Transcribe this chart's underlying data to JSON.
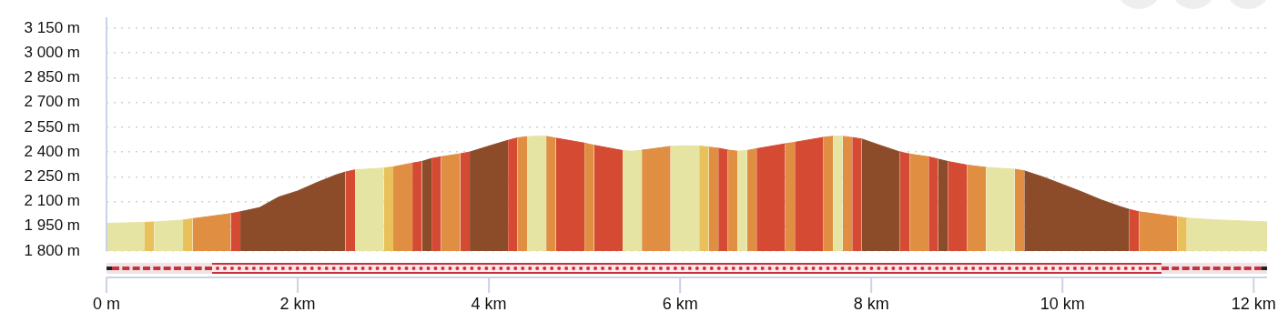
{
  "chart_data": {
    "type": "area",
    "series": [
      {
        "color": "#e6e4a2",
        "x": [
          0,
          0.4
        ],
        "values": [
          1968,
          1974
        ]
      },
      {
        "color": "#e8c15a",
        "x": [
          0.4,
          0.5
        ],
        "values": [
          1974,
          1976
        ]
      },
      {
        "color": "#e6e4a2",
        "x": [
          0.5,
          0.8
        ],
        "values": [
          1976,
          1988
        ]
      },
      {
        "color": "#e8c15a",
        "x": [
          0.8,
          0.9
        ],
        "values": [
          1988,
          1996
        ]
      },
      {
        "color": "#e08e42",
        "x": [
          0.9,
          1.3
        ],
        "values": [
          1996,
          2027
        ]
      },
      {
        "color": "#d44a32",
        "x": [
          1.3,
          1.4
        ],
        "values": [
          2027,
          2038
        ]
      },
      {
        "color": "#8c4c2a",
        "x": [
          1.4,
          1.6,
          1.8,
          2.0,
          2.2,
          2.4,
          2.5
        ],
        "values": [
          2038,
          2063,
          2127,
          2164,
          2215,
          2261,
          2279
        ]
      },
      {
        "color": "#d44a32",
        "x": [
          2.5,
          2.6
        ],
        "values": [
          2279,
          2292
        ]
      },
      {
        "color": "#e6e4a2",
        "x": [
          2.6,
          2.9
        ],
        "values": [
          2292,
          2303
        ]
      },
      {
        "color": "#e8c15a",
        "x": [
          2.9,
          3.0
        ],
        "values": [
          2303,
          2310
        ]
      },
      {
        "color": "#e08e42",
        "x": [
          3.0,
          3.2
        ],
        "values": [
          2310,
          2333
        ]
      },
      {
        "color": "#d44a32",
        "x": [
          3.2,
          3.3
        ],
        "values": [
          2333,
          2343
        ]
      },
      {
        "color": "#8c4c2a",
        "x": [
          3.3,
          3.4
        ],
        "values": [
          2343,
          2361
        ]
      },
      {
        "color": "#d44a32",
        "x": [
          3.4,
          3.5
        ],
        "values": [
          2361,
          2371
        ]
      },
      {
        "color": "#e08e42",
        "x": [
          3.5,
          3.7
        ],
        "values": [
          2371,
          2389
        ]
      },
      {
        "color": "#d44a32",
        "x": [
          3.7,
          3.8
        ],
        "values": [
          2389,
          2400
        ]
      },
      {
        "color": "#8c4c2a",
        "x": [
          3.8,
          4.0,
          4.2
        ],
        "values": [
          2400,
          2436,
          2471
        ]
      },
      {
        "color": "#d44a32",
        "x": [
          4.2,
          4.3
        ],
        "values": [
          2471,
          2486
        ]
      },
      {
        "color": "#e08e42",
        "x": [
          4.3,
          4.4
        ],
        "values": [
          2486,
          2493
        ]
      },
      {
        "color": "#e6e4a2",
        "x": [
          4.4,
          4.5,
          4.6
        ],
        "values": [
          2493,
          2496,
          2495
        ]
      },
      {
        "color": "#e08e42",
        "x": [
          4.6,
          4.7
        ],
        "values": [
          2495,
          2484
        ]
      },
      {
        "color": "#d44a32",
        "x": [
          4.7,
          5.0
        ],
        "values": [
          2484,
          2454
        ]
      },
      {
        "color": "#e08e42",
        "x": [
          5.0,
          5.1
        ],
        "values": [
          2454,
          2441
        ]
      },
      {
        "color": "#d44a32",
        "x": [
          5.1,
          5.4
        ],
        "values": [
          2441,
          2409
        ]
      },
      {
        "color": "#e6e4a2",
        "x": [
          5.4,
          5.5,
          5.6
        ],
        "values": [
          2409,
          2405,
          2411
        ]
      },
      {
        "color": "#e08e42",
        "x": [
          5.6,
          5.9
        ],
        "values": [
          2411,
          2434
        ]
      },
      {
        "color": "#e6e4a2",
        "x": [
          5.9,
          6.05,
          6.2
        ],
        "values": [
          2434,
          2438,
          2436
        ]
      },
      {
        "color": "#e8c15a",
        "x": [
          6.2,
          6.3
        ],
        "values": [
          2436,
          2430
        ]
      },
      {
        "color": "#e08e42",
        "x": [
          6.3,
          6.4
        ],
        "values": [
          2430,
          2423
        ]
      },
      {
        "color": "#d44a32",
        "x": [
          6.4,
          6.5
        ],
        "values": [
          2423,
          2412
        ]
      },
      {
        "color": "#e08e42",
        "x": [
          6.5,
          6.6
        ],
        "values": [
          2412,
          2405
        ]
      },
      {
        "color": "#e6e4a2",
        "x": [
          6.6,
          6.7
        ],
        "values": [
          2405,
          2409
        ]
      },
      {
        "color": "#e08e42",
        "x": [
          6.7,
          6.8
        ],
        "values": [
          2409,
          2420
        ]
      },
      {
        "color": "#d44a32",
        "x": [
          6.8,
          7.1
        ],
        "values": [
          2420,
          2450
        ]
      },
      {
        "color": "#e08e42",
        "x": [
          7.1,
          7.2
        ],
        "values": [
          2450,
          2459
        ]
      },
      {
        "color": "#d44a32",
        "x": [
          7.2,
          7.5
        ],
        "values": [
          2459,
          2489
        ]
      },
      {
        "color": "#e08e42",
        "x": [
          7.5,
          7.6
        ],
        "values": [
          2489,
          2496
        ]
      },
      {
        "color": "#e6e4a2",
        "x": [
          7.6,
          7.7
        ],
        "values": [
          2496,
          2495
        ]
      },
      {
        "color": "#e08e42",
        "x": [
          7.7,
          7.8
        ],
        "values": [
          2495,
          2488
        ]
      },
      {
        "color": "#d44a32",
        "x": [
          7.8,
          7.9
        ],
        "values": [
          2488,
          2479
        ]
      },
      {
        "color": "#8c4c2a",
        "x": [
          7.9,
          8.1,
          8.3
        ],
        "values": [
          2479,
          2439,
          2400
        ]
      },
      {
        "color": "#d44a32",
        "x": [
          8.3,
          8.4
        ],
        "values": [
          2400,
          2388
        ]
      },
      {
        "color": "#e08e42",
        "x": [
          8.4,
          8.6
        ],
        "values": [
          2388,
          2371
        ]
      },
      {
        "color": "#d44a32",
        "x": [
          8.6,
          8.7
        ],
        "values": [
          2371,
          2357
        ]
      },
      {
        "color": "#8c4c2a",
        "x": [
          8.7,
          8.8
        ],
        "values": [
          2357,
          2343
        ]
      },
      {
        "color": "#d44a32",
        "x": [
          8.8,
          9.0
        ],
        "values": [
          2343,
          2321
        ]
      },
      {
        "color": "#e08e42",
        "x": [
          9.0,
          9.2
        ],
        "values": [
          2321,
          2307
        ]
      },
      {
        "color": "#e6e4a2",
        "x": [
          9.2,
          9.5
        ],
        "values": [
          2307,
          2296
        ]
      },
      {
        "color": "#e08e42",
        "x": [
          9.5,
          9.6
        ],
        "values": [
          2296,
          2286
        ]
      },
      {
        "color": "#8c4c2a",
        "x": [
          9.6,
          9.8,
          10.0,
          10.2,
          10.4,
          10.6,
          10.7
        ],
        "values": [
          2286,
          2248,
          2204,
          2159,
          2111,
          2070,
          2052
        ]
      },
      {
        "color": "#d44a32",
        "x": [
          10.7,
          10.8
        ],
        "values": [
          2052,
          2038
        ]
      },
      {
        "color": "#e08e42",
        "x": [
          10.8,
          11.2
        ],
        "values": [
          2038,
          2007
        ]
      },
      {
        "color": "#e8c15a",
        "x": [
          11.2,
          11.3
        ],
        "values": [
          2007,
          2000
        ]
      },
      {
        "color": "#e6e4a2",
        "x": [
          11.3,
          11.6,
          12.14
        ],
        "values": [
          2000,
          1989,
          1977
        ]
      }
    ],
    "xlim": [
      0,
      12.14
    ],
    "xticks": [
      {
        "value": 0,
        "label": "0 m"
      },
      {
        "value": 2,
        "label": "2 km"
      },
      {
        "value": 4,
        "label": "4 km"
      },
      {
        "value": 6,
        "label": "6 km"
      },
      {
        "value": 8,
        "label": "8 km"
      },
      {
        "value": 10,
        "label": "10 km"
      },
      {
        "value": 12,
        "label": "12 km"
      }
    ],
    "ylim": [
      1800,
      3150
    ],
    "yticks": [
      {
        "value": 1800,
        "label": "1 800 m"
      },
      {
        "value": 1950,
        "label": "1 950 m"
      },
      {
        "value": 2100,
        "label": "2 100 m"
      },
      {
        "value": 2250,
        "label": "2 250 m"
      },
      {
        "value": 2400,
        "label": "2 400 m"
      },
      {
        "value": 2550,
        "label": "2 550 m"
      },
      {
        "value": 2700,
        "label": "2 700 m"
      },
      {
        "value": 2850,
        "label": "2 850 m"
      },
      {
        "value": 3000,
        "label": "3 000 m"
      },
      {
        "value": 3150,
        "label": "3 150 m"
      }
    ],
    "grid": "y"
  }
}
